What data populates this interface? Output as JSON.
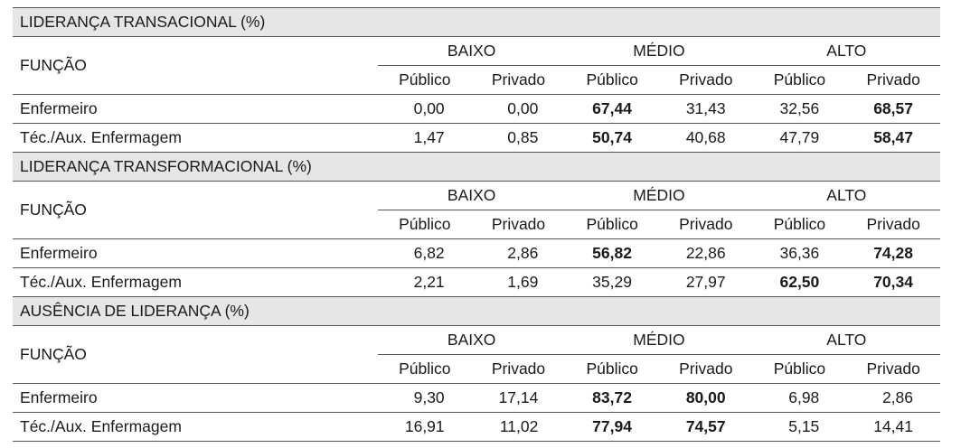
{
  "sections": [
    {
      "title": "LIDERANÇA TRANSACIONAL (%)",
      "header": {
        "label": "FUNÇÃO",
        "groups": [
          "BAIXO",
          "MÉDIO",
          "ALTO"
        ],
        "subheaders": [
          "Público",
          "Privado",
          "Público",
          "Privado",
          "Público",
          "Privado"
        ]
      },
      "rows": [
        {
          "label": "Enfermeiro",
          "cells": [
            "0,00",
            "0,00",
            "67,44",
            "31,43",
            "32,56",
            "68,57"
          ],
          "bold": [
            2,
            5
          ]
        },
        {
          "label": "Téc./Aux. Enfermagem",
          "cells": [
            "1,47",
            "0,85",
            "50,74",
            "40,68",
            "47,79",
            "58,47"
          ],
          "bold": [
            2,
            5
          ]
        }
      ]
    },
    {
      "title": "LIDERANÇA TRANSFORMACIONAL (%)",
      "header": {
        "label": "FUNÇÃO",
        "groups": [
          "BAIXO",
          "MÉDIO",
          "ALTO"
        ],
        "subheaders": [
          "Público",
          "Privado",
          "Público",
          "Privado",
          "Público",
          "Privado"
        ]
      },
      "rows": [
        {
          "label": "Enfermeiro",
          "cells": [
            "6,82",
            "2,86",
            "56,82",
            "22,86",
            "36,36",
            "74,28"
          ],
          "bold": [
            2,
            5
          ]
        },
        {
          "label": "Téc./Aux. Enfermagem",
          "cells": [
            "2,21",
            "1,69",
            "35,29",
            "27,97",
            "62,50",
            "70,34"
          ],
          "bold": [
            4,
            5
          ]
        }
      ]
    },
    {
      "title": "AUSÊNCIA DE LIDERANÇA (%)",
      "header": {
        "label": "FUNÇÃO",
        "groups": [
          "BAIXO",
          "MÉDIO",
          "ALTO"
        ],
        "subheaders": [
          "Público",
          "Privado",
          "Público",
          "Privado",
          "Público",
          "Privado"
        ]
      },
      "rows": [
        {
          "label": "Enfermeiro",
          "cells": [
            "9,30",
            "17,14",
            "83,72",
            "80,00",
            "6,98",
            "2,86"
          ],
          "bold": [
            2,
            3
          ]
        },
        {
          "label": "Téc./Aux. Enfermagem",
          "cells": [
            "16,91",
            "11,02",
            "77,94",
            "74,57",
            "5,15",
            "14,41"
          ],
          "bold": [
            2,
            3
          ]
        }
      ]
    }
  ]
}
